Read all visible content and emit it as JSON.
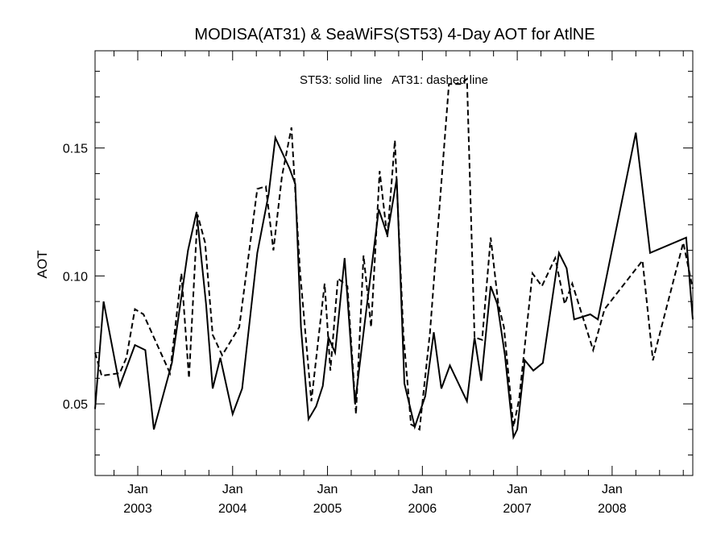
{
  "chart_data": {
    "type": "line",
    "title": "MODISA(AT31) & SeaWiFS(ST53) 4-Day AOT for AtlNE",
    "ylabel": "AOT",
    "xlabel": "",
    "annotation": "ST53: solid line   AT31: dashed line",
    "ylim": [
      0.022,
      0.188
    ],
    "xlim": [
      2002.55,
      2008.85
    ],
    "yticks": [
      {
        "value": 0.05,
        "label": "0.05"
      },
      {
        "value": 0.1,
        "label": "0.10"
      },
      {
        "value": 0.15,
        "label": "0.15"
      }
    ],
    "xticks": [
      {
        "value": 2003.0,
        "month": "Jan",
        "year": "2003"
      },
      {
        "value": 2004.0,
        "month": "Jan",
        "year": "2004"
      },
      {
        "value": 2005.0,
        "month": "Jan",
        "year": "2005"
      },
      {
        "value": 2006.0,
        "month": "Jan",
        "year": "2006"
      },
      {
        "value": 2007.0,
        "month": "Jan",
        "year": "2007"
      },
      {
        "value": 2008.0,
        "month": "Jan",
        "year": "2008"
      }
    ],
    "grid": false,
    "series": [
      {
        "name": "ST53",
        "style": "solid",
        "color": "#000000",
        "points": [
          [
            2002.55,
            0.048
          ],
          [
            2002.64,
            0.09
          ],
          [
            2002.81,
            0.057
          ],
          [
            2002.97,
            0.073
          ],
          [
            2003.08,
            0.071
          ],
          [
            2003.17,
            0.04
          ],
          [
            2003.36,
            0.066
          ],
          [
            2003.53,
            0.11
          ],
          [
            2003.62,
            0.125
          ],
          [
            2003.72,
            0.089
          ],
          [
            2003.79,
            0.056
          ],
          [
            2003.87,
            0.068
          ],
          [
            2004.0,
            0.046
          ],
          [
            2004.1,
            0.056
          ],
          [
            2004.26,
            0.109
          ],
          [
            2004.38,
            0.132
          ],
          [
            2004.45,
            0.154
          ],
          [
            2004.6,
            0.142
          ],
          [
            2004.66,
            0.136
          ],
          [
            2004.72,
            0.08
          ],
          [
            2004.8,
            0.044
          ],
          [
            2004.88,
            0.049
          ],
          [
            2004.95,
            0.057
          ],
          [
            2005.01,
            0.076
          ],
          [
            2005.08,
            0.07
          ],
          [
            2005.18,
            0.107
          ],
          [
            2005.29,
            0.05
          ],
          [
            2005.39,
            0.081
          ],
          [
            2005.54,
            0.126
          ],
          [
            2005.63,
            0.116
          ],
          [
            2005.73,
            0.138
          ],
          [
            2005.81,
            0.058
          ],
          [
            2005.92,
            0.041
          ],
          [
            2006.03,
            0.053
          ],
          [
            2006.12,
            0.078
          ],
          [
            2006.2,
            0.056
          ],
          [
            2006.29,
            0.065
          ],
          [
            2006.47,
            0.051
          ],
          [
            2006.55,
            0.076
          ],
          [
            2006.62,
            0.059
          ],
          [
            2006.72,
            0.096
          ],
          [
            2006.79,
            0.089
          ],
          [
            2006.87,
            0.069
          ],
          [
            2006.96,
            0.037
          ],
          [
            2007.0,
            0.04
          ],
          [
            2007.08,
            0.067
          ],
          [
            2007.17,
            0.063
          ],
          [
            2007.27,
            0.066
          ],
          [
            2007.44,
            0.109
          ],
          [
            2007.52,
            0.103
          ],
          [
            2007.6,
            0.083
          ],
          [
            2007.77,
            0.085
          ],
          [
            2007.85,
            0.083
          ],
          [
            2008.25,
            0.156
          ],
          [
            2008.4,
            0.109
          ],
          [
            2008.78,
            0.115
          ],
          [
            2008.85,
            0.083
          ]
        ]
      },
      {
        "name": "AT31",
        "style": "dashed",
        "color": "#000000",
        "points": [
          [
            2002.55,
            0.07
          ],
          [
            2002.62,
            0.061
          ],
          [
            2002.81,
            0.062
          ],
          [
            2002.88,
            0.068
          ],
          [
            2002.97,
            0.087
          ],
          [
            2003.06,
            0.085
          ],
          [
            2003.34,
            0.062
          ],
          [
            2003.46,
            0.101
          ],
          [
            2003.54,
            0.06
          ],
          [
            2003.63,
            0.124
          ],
          [
            2003.71,
            0.113
          ],
          [
            2003.79,
            0.077
          ],
          [
            2003.89,
            0.069
          ],
          [
            2004.07,
            0.08
          ],
          [
            2004.26,
            0.134
          ],
          [
            2004.35,
            0.135
          ],
          [
            2004.43,
            0.11
          ],
          [
            2004.52,
            0.139
          ],
          [
            2004.62,
            0.158
          ],
          [
            2004.71,
            0.102
          ],
          [
            2004.83,
            0.051
          ],
          [
            2004.97,
            0.097
          ],
          [
            2005.03,
            0.063
          ],
          [
            2005.11,
            0.099
          ],
          [
            2005.21,
            0.096
          ],
          [
            2005.3,
            0.046
          ],
          [
            2005.38,
            0.108
          ],
          [
            2005.46,
            0.08
          ],
          [
            2005.55,
            0.141
          ],
          [
            2005.63,
            0.115
          ],
          [
            2005.71,
            0.153
          ],
          [
            2005.8,
            0.077
          ],
          [
            2005.88,
            0.042
          ],
          [
            2005.97,
            0.04
          ],
          [
            2006.08,
            0.078
          ],
          [
            2006.17,
            0.122
          ],
          [
            2006.28,
            0.175
          ],
          [
            2006.4,
            0.175
          ],
          [
            2006.47,
            0.177
          ],
          [
            2006.55,
            0.076
          ],
          [
            2006.63,
            0.075
          ],
          [
            2006.72,
            0.115
          ],
          [
            2006.8,
            0.089
          ],
          [
            2006.86,
            0.08
          ],
          [
            2006.96,
            0.041
          ],
          [
            2007.02,
            0.052
          ],
          [
            2007.16,
            0.101
          ],
          [
            2007.26,
            0.096
          ],
          [
            2007.4,
            0.107
          ],
          [
            2007.5,
            0.089
          ],
          [
            2007.58,
            0.097
          ],
          [
            2007.8,
            0.071
          ],
          [
            2007.92,
            0.087
          ],
          [
            2008.32,
            0.106
          ],
          [
            2008.43,
            0.067
          ],
          [
            2008.75,
            0.113
          ],
          [
            2008.85,
            0.095
          ]
        ]
      }
    ]
  }
}
